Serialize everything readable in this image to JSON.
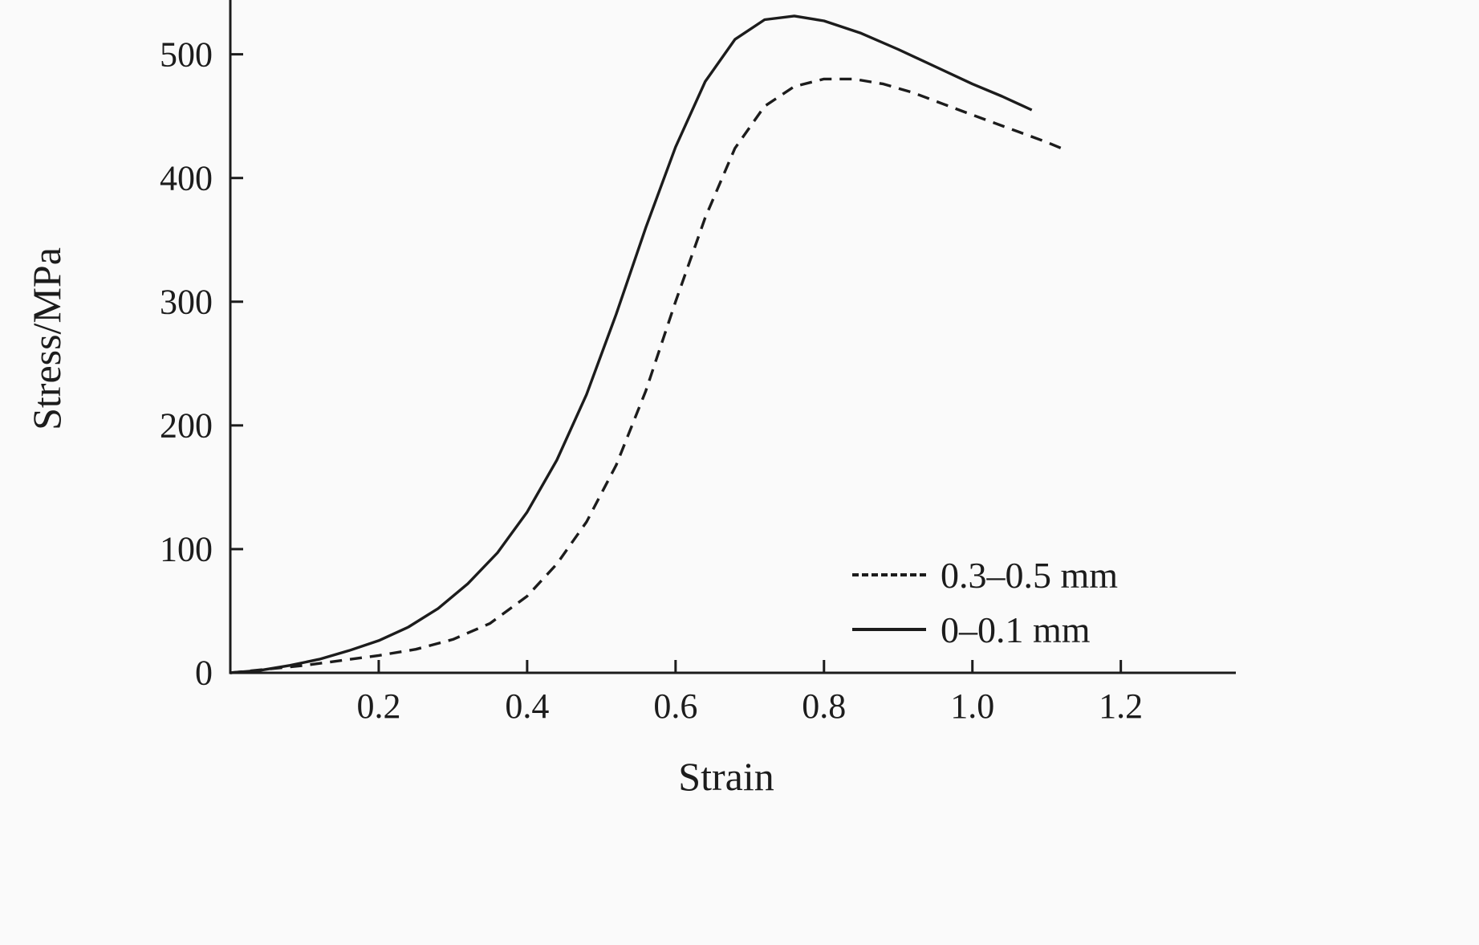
{
  "chart_data": {
    "type": "line",
    "title": "",
    "xlabel": "Strain",
    "ylabel": "Stress/MPa",
    "xlim": [
      0,
      1.355
    ],
    "ylim": [
      0,
      540
    ],
    "grid": false,
    "legend_position": "lower right",
    "axis_color": "#1c1c1c",
    "x_ticks": [
      {
        "v": 0.2,
        "label": "0.2"
      },
      {
        "v": 0.4,
        "label": "0.4"
      },
      {
        "v": 0.6,
        "label": "0.6"
      },
      {
        "v": 0.8,
        "label": "0.8"
      },
      {
        "v": 1.0,
        "label": "1.0"
      },
      {
        "v": 1.2,
        "label": "1.2"
      }
    ],
    "y_ticks": [
      {
        "v": 0,
        "label": "0"
      },
      {
        "v": 100,
        "label": "100"
      },
      {
        "v": 200,
        "label": "200"
      },
      {
        "v": 300,
        "label": "300"
      },
      {
        "v": 400,
        "label": "400"
      },
      {
        "v": 500,
        "label": "500"
      }
    ],
    "series": [
      {
        "name": "0.3–0.5 mm",
        "style": "dashed",
        "color": "#1c1c1c",
        "points": [
          [
            0.0,
            0
          ],
          [
            0.05,
            3
          ],
          [
            0.1,
            6
          ],
          [
            0.15,
            10
          ],
          [
            0.2,
            14
          ],
          [
            0.25,
            19
          ],
          [
            0.3,
            27
          ],
          [
            0.35,
            40
          ],
          [
            0.4,
            62
          ],
          [
            0.44,
            88
          ],
          [
            0.48,
            122
          ],
          [
            0.52,
            168
          ],
          [
            0.56,
            228
          ],
          [
            0.6,
            300
          ],
          [
            0.64,
            368
          ],
          [
            0.68,
            424
          ],
          [
            0.72,
            458
          ],
          [
            0.76,
            474
          ],
          [
            0.8,
            480
          ],
          [
            0.84,
            480
          ],
          [
            0.88,
            476
          ],
          [
            0.92,
            469
          ],
          [
            0.96,
            460
          ],
          [
            1.0,
            451
          ],
          [
            1.05,
            440
          ],
          [
            1.1,
            429
          ],
          [
            1.12,
            424
          ]
        ]
      },
      {
        "name": "0–0.1 mm",
        "style": "solid",
        "color": "#1c1c1c",
        "points": [
          [
            0.0,
            0
          ],
          [
            0.04,
            2
          ],
          [
            0.08,
            6
          ],
          [
            0.12,
            11
          ],
          [
            0.16,
            18
          ],
          [
            0.2,
            26
          ],
          [
            0.24,
            37
          ],
          [
            0.28,
            52
          ],
          [
            0.32,
            72
          ],
          [
            0.36,
            97
          ],
          [
            0.4,
            130
          ],
          [
            0.44,
            172
          ],
          [
            0.48,
            225
          ],
          [
            0.52,
            290
          ],
          [
            0.56,
            360
          ],
          [
            0.6,
            425
          ],
          [
            0.64,
            478
          ],
          [
            0.68,
            512
          ],
          [
            0.72,
            528
          ],
          [
            0.76,
            531
          ],
          [
            0.8,
            527
          ],
          [
            0.85,
            517
          ],
          [
            0.9,
            504
          ],
          [
            0.95,
            490
          ],
          [
            1.0,
            476
          ],
          [
            1.04,
            466
          ],
          [
            1.08,
            455
          ]
        ]
      }
    ]
  }
}
